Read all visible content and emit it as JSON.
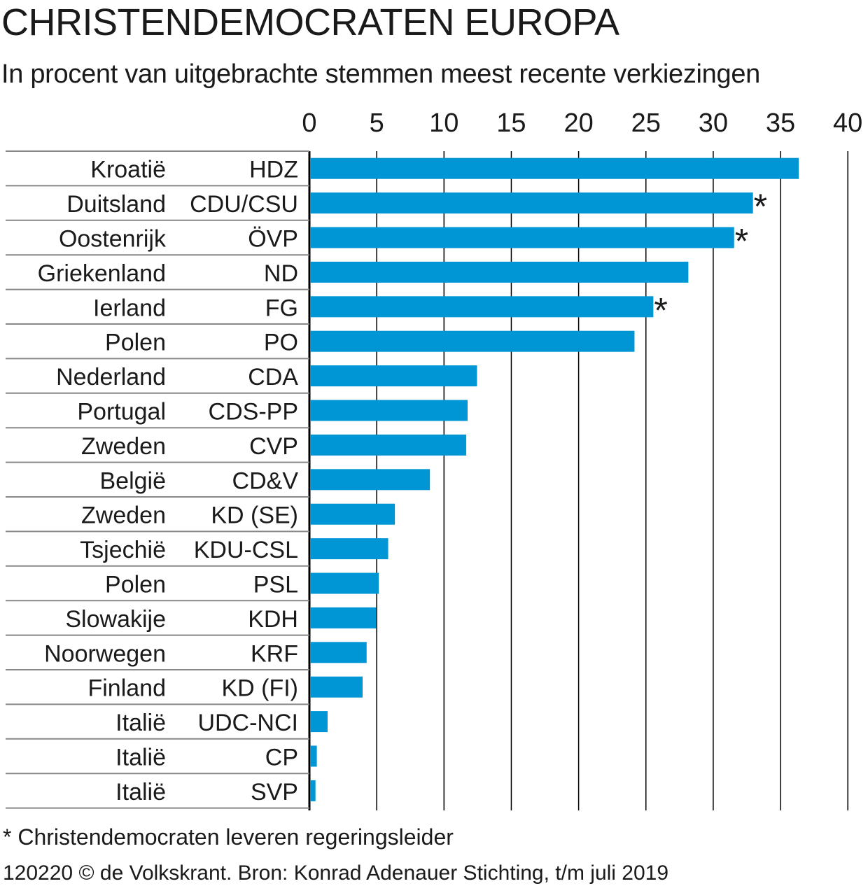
{
  "title": "CHRISTENDEMOCRATEN EUROPA",
  "subtitle": "In procent van uitgebrachte stemmen meest recente verkiezingen",
  "footnote": "* Christendemocraten leveren regeringsleider",
  "source": "120220 © de Volkskrant. Bron: Konrad Adenauer Stichting, t/m juli 2019",
  "colors": {
    "bar": "#0096d6",
    "grid": "#000000",
    "row_line": "#888888"
  },
  "chart_data": {
    "type": "bar",
    "orientation": "horizontal",
    "xlim": [
      0,
      40
    ],
    "xticks": [
      "0",
      "5",
      "10",
      "15",
      "20",
      "25",
      "30",
      "35",
      "40"
    ],
    "grid": true,
    "marker_symbol": "*",
    "rows": [
      {
        "country": "Kroatië",
        "party": "HDZ",
        "value": 36.3,
        "leader": false
      },
      {
        "country": "Duitsland",
        "party": "CDU/CSU",
        "value": 32.9,
        "leader": true
      },
      {
        "country": "Oostenrijk",
        "party": "ÖVP",
        "value": 31.5,
        "leader": true
      },
      {
        "country": "Griekenland",
        "party": "ND",
        "value": 28.1,
        "leader": false
      },
      {
        "country": "Ierland",
        "party": "FG",
        "value": 25.5,
        "leader": true
      },
      {
        "country": "Polen",
        "party": "PO",
        "value": 24.1,
        "leader": false
      },
      {
        "country": "Nederland",
        "party": "CDA",
        "value": 12.4,
        "leader": false
      },
      {
        "country": "Portugal",
        "party": "CDS-PP",
        "value": 11.7,
        "leader": false
      },
      {
        "country": "Zweden",
        "party": "CVP",
        "value": 11.6,
        "leader": false
      },
      {
        "country": "België",
        "party": "CD&V",
        "value": 8.9,
        "leader": false
      },
      {
        "country": "Zweden",
        "party": "KD (SE)",
        "value": 6.3,
        "leader": false
      },
      {
        "country": "Tsjechië",
        "party": "KDU-CSL",
        "value": 5.8,
        "leader": false
      },
      {
        "country": "Polen",
        "party": "PSL",
        "value": 5.1,
        "leader": false
      },
      {
        "country": "Slowakije",
        "party": "KDH",
        "value": 4.9,
        "leader": false
      },
      {
        "country": "Noorwegen",
        "party": "KRF",
        "value": 4.2,
        "leader": false
      },
      {
        "country": "Finland",
        "party": "KD (FI)",
        "value": 3.9,
        "leader": false
      },
      {
        "country": "Italië",
        "party": "UDC-NCI",
        "value": 1.3,
        "leader": false
      },
      {
        "country": "Italië",
        "party": "CP",
        "value": 0.5,
        "leader": false
      },
      {
        "country": "Italië",
        "party": "SVP",
        "value": 0.4,
        "leader": false
      }
    ]
  }
}
